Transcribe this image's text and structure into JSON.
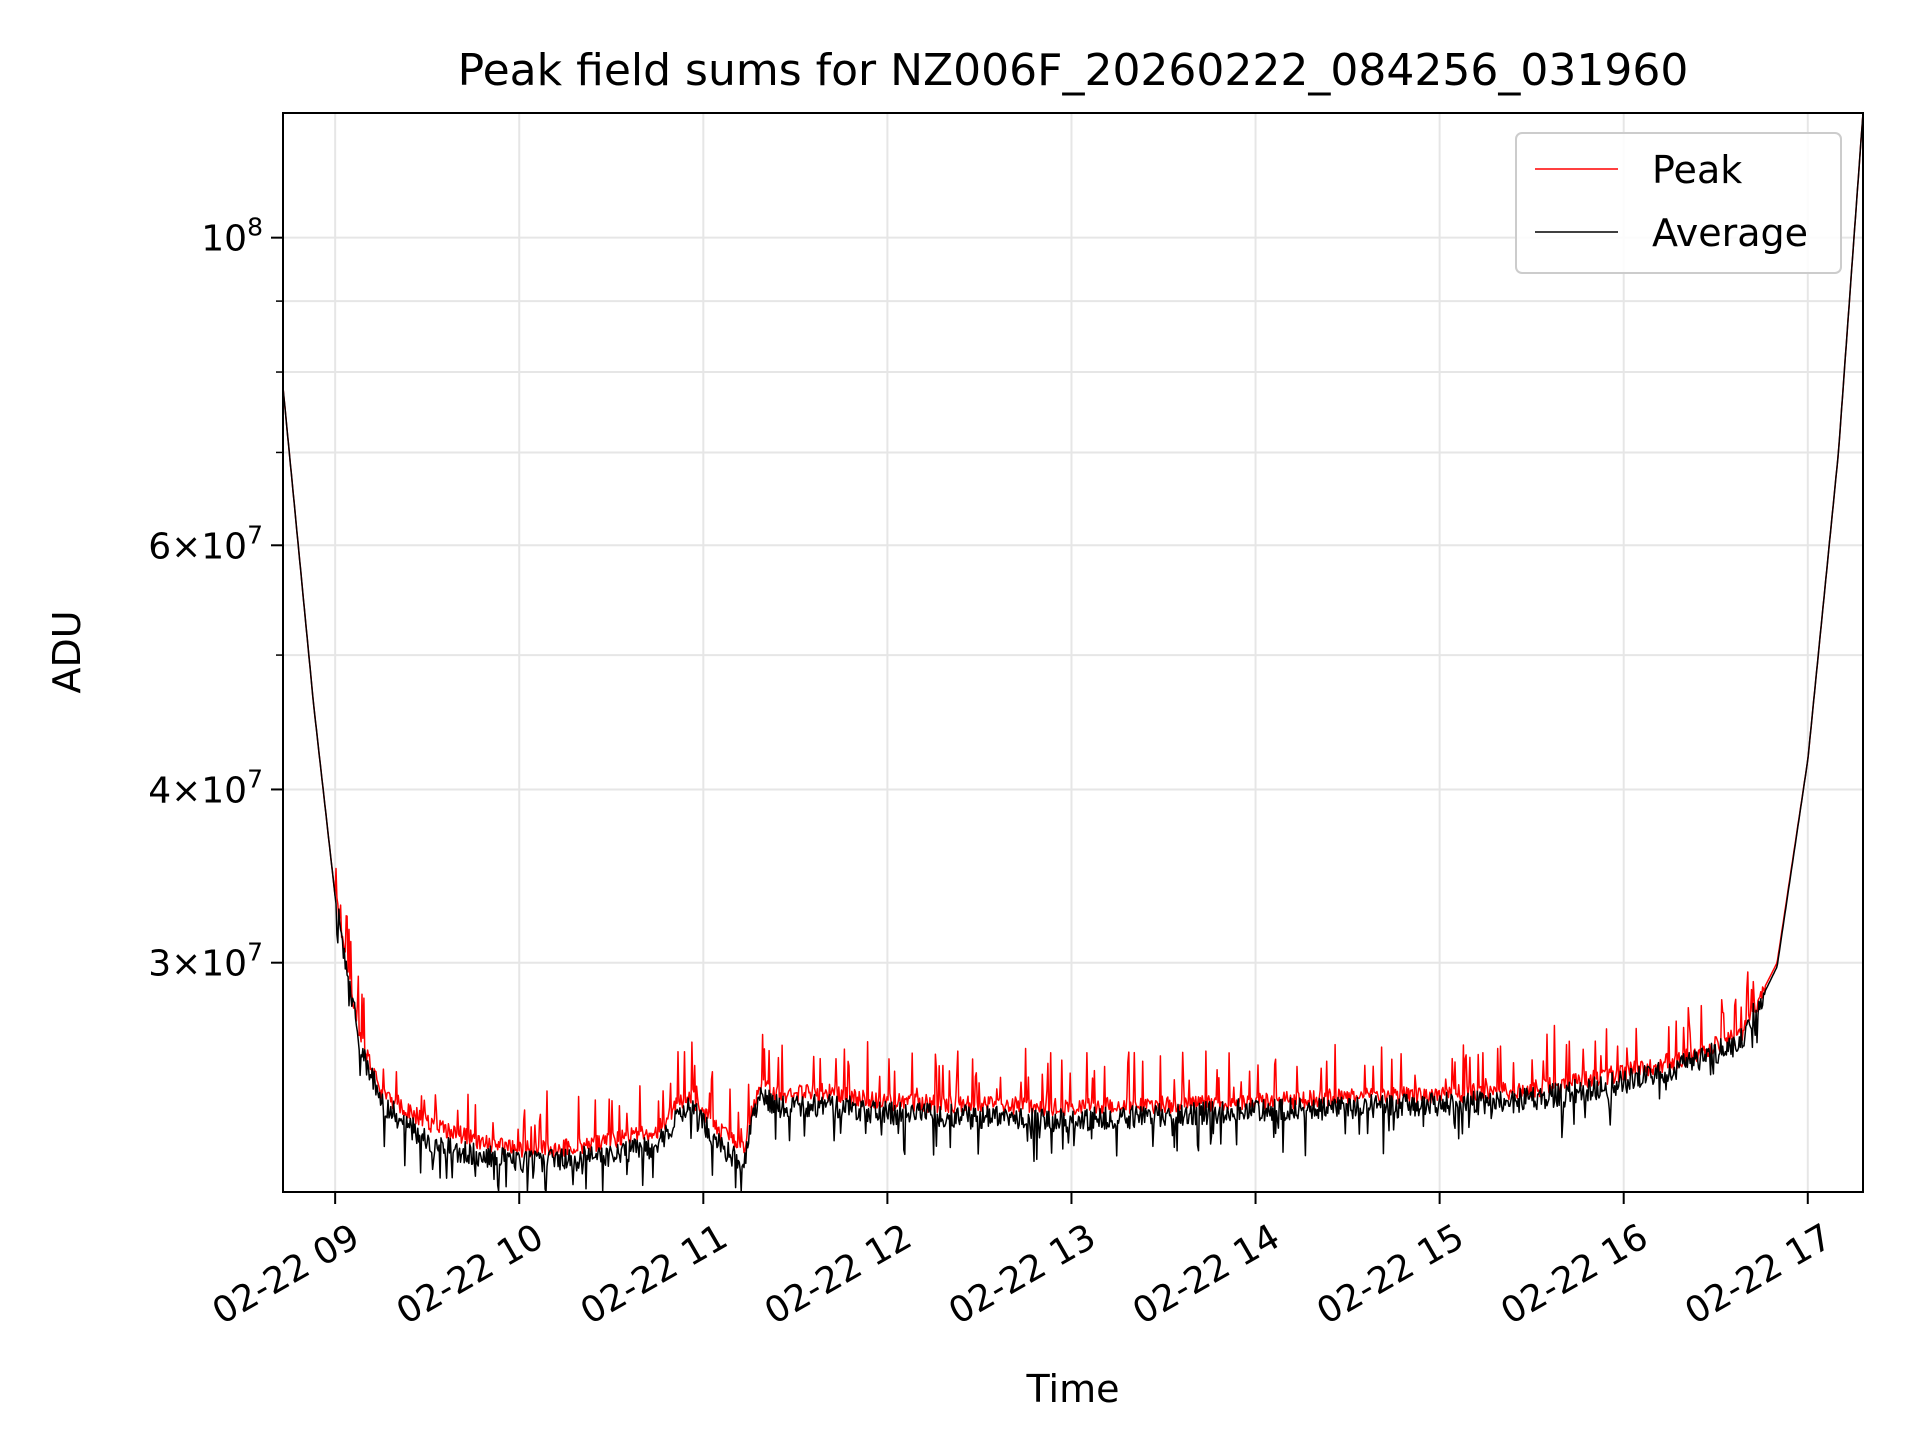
{
  "chart_data": {
    "type": "line",
    "title": "Peak field sums for NZ006F_20260222_084256_031960",
    "xlabel": "Time",
    "ylabel": "ADU",
    "y_scale": "log",
    "grid": true,
    "legend_position": "top-right",
    "xlim": [
      "2026-02-22 08:43",
      "2026-02-22 17:18"
    ],
    "ylim": [
      20500000,
      123000000
    ],
    "x_ticks": [
      {
        "value": "2026-02-22 09:00",
        "label": "02-22 09"
      },
      {
        "value": "2026-02-22 10:00",
        "label": "02-22 10"
      },
      {
        "value": "2026-02-22 11:00",
        "label": "02-22 11"
      },
      {
        "value": "2026-02-22 12:00",
        "label": "02-22 12"
      },
      {
        "value": "2026-02-22 13:00",
        "label": "02-22 13"
      },
      {
        "value": "2026-02-22 14:00",
        "label": "02-22 14"
      },
      {
        "value": "2026-02-22 15:00",
        "label": "02-22 15"
      },
      {
        "value": "2026-02-22 16:00",
        "label": "02-22 16"
      },
      {
        "value": "2026-02-22 17:00",
        "label": "02-22 17"
      }
    ],
    "y_ticks": [
      {
        "value": 30000000,
        "mantissa": "3",
        "exponent": "7"
      },
      {
        "value": 40000000,
        "mantissa": "4",
        "exponent": "7"
      },
      {
        "value": 60000000,
        "mantissa": "6",
        "exponent": "7"
      },
      {
        "value": 100000000,
        "mantissa": "",
        "exponent": "8"
      }
    ],
    "y_minor_ticks": [
      20000000,
      50000000,
      70000000,
      80000000,
      90000000
    ],
    "x": [
      "2026-02-22 08:43",
      "2026-02-22 08:53",
      "2026-02-22 09:00",
      "2026-02-22 09:08",
      "2026-02-22 09:15",
      "2026-02-22 09:30",
      "2026-02-22 09:45",
      "2026-02-22 10:00",
      "2026-02-22 10:15",
      "2026-02-22 10:30",
      "2026-02-22 10:45",
      "2026-02-22 10:55",
      "2026-02-22 11:05",
      "2026-02-22 11:13",
      "2026-02-22 11:18",
      "2026-02-22 11:25",
      "2026-02-22 11:40",
      "2026-02-22 12:00",
      "2026-02-22 12:30",
      "2026-02-22 13:00",
      "2026-02-22 13:30",
      "2026-02-22 14:00",
      "2026-02-22 14:30",
      "2026-02-22 15:00",
      "2026-02-22 15:30",
      "2026-02-22 16:00",
      "2026-02-22 16:20",
      "2026-02-22 16:38",
      "2026-02-22 16:50",
      "2026-02-22 17:00",
      "2026-02-22 17:10",
      "2026-02-22 17:18"
    ],
    "series": [
      {
        "name": "Peak",
        "color": "#ff0000",
        "values": [
          78000000,
          46000000,
          33500000,
          26500000,
          24200000,
          23000000,
          22400000,
          22000000,
          22050000,
          22300000,
          22700000,
          24200000,
          22700000,
          22000000,
          24500000,
          24100000,
          24200000,
          23800000,
          23700000,
          23600000,
          23700000,
          23800000,
          24000000,
          24100000,
          24300000,
          25000000,
          25600000,
          26600000,
          30000000,
          42000000,
          70000000,
          123000000
        ]
      },
      {
        "name": "Average",
        "color": "#000000",
        "values": [
          78000000,
          46000000,
          33500000,
          26200000,
          23800000,
          22300000,
          21800000,
          21600000,
          21600000,
          21800000,
          22100000,
          23700000,
          22200000,
          21500000,
          24000000,
          23600000,
          23700000,
          23400000,
          23200000,
          23100000,
          23300000,
          23500000,
          23600000,
          23700000,
          23900000,
          24600000,
          25300000,
          26300000,
          29800000,
          42000000,
          70000000,
          123000000
        ]
      }
    ]
  }
}
